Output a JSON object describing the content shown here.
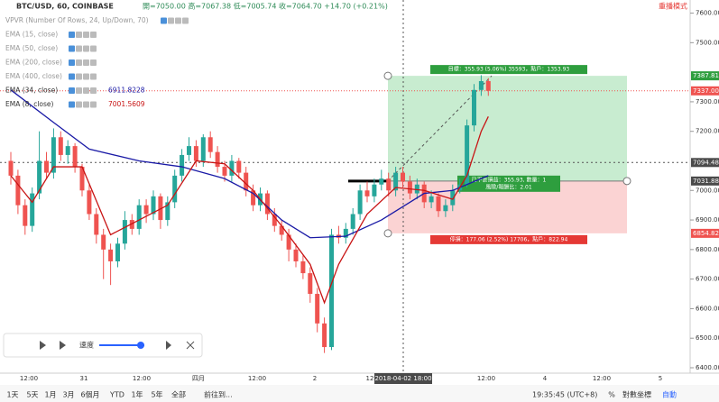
{
  "header": {
    "symbol": "BTC/USD, 60, COINBASE",
    "ohlc": "開=7050.00 高=7067.38 低=7005.74 收=7064.70 +14.70 (+0.21%)",
    "mode": "重播模式"
  },
  "indicators": [
    {
      "name": "VPVR (Number Of Rows, 24, Up/Down, 70)"
    },
    {
      "name": "EMA (15, close)"
    },
    {
      "name": "EMA (50, close)"
    },
    {
      "name": "EMA (200, close)"
    },
    {
      "name": "EMA (400, close)"
    },
    {
      "name": "EMA (34, close)",
      "value": "6911.8228",
      "color": "#1a1aa6"
    },
    {
      "name": "EMA (8, close)",
      "value": "7001.5609",
      "color": "#c81414"
    }
  ],
  "chart": {
    "ylim": [
      6400,
      7620
    ],
    "yticks": [
      {
        "value": 7600,
        "label": "7600.00"
      },
      {
        "value": 7500,
        "label": "7500.00"
      },
      {
        "value": 7300,
        "label": "7300.00"
      },
      {
        "value": 7200,
        "label": "7200.00"
      },
      {
        "value": 7000,
        "label": "7000.00"
      },
      {
        "value": 6900,
        "label": "6900.00"
      },
      {
        "value": 6800,
        "label": "6800.00"
      },
      {
        "value": 6700,
        "label": "6700.00"
      },
      {
        "value": 6600,
        "label": "6600.00"
      },
      {
        "value": 6500,
        "label": "6500.00"
      },
      {
        "value": 6400,
        "label": "6400.00"
      }
    ],
    "xlabels": [
      "12:00",
      "31",
      "12:00",
      "四月",
      "12:00",
      "2",
      "12",
      "12:00",
      "4",
      "12:00",
      "5"
    ],
    "up_color": "#26a69a",
    "down_color": "#ef5350",
    "candles": [
      [
        7100,
        7130,
        7020,
        7050
      ],
      [
        7050,
        7070,
        6920,
        6950
      ],
      [
        6950,
        6970,
        6850,
        6880
      ],
      [
        6880,
        7010,
        6860,
        6990
      ],
      [
        6990,
        7200,
        6970,
        7100
      ],
      [
        7100,
        7130,
        7040,
        7060
      ],
      [
        7060,
        7210,
        7040,
        7180
      ],
      [
        7180,
        7200,
        7100,
        7120
      ],
      [
        7120,
        7170,
        7090,
        7150
      ],
      [
        7150,
        7160,
        7060,
        7080
      ],
      [
        7080,
        7090,
        6980,
        7000
      ],
      [
        7000,
        7020,
        6900,
        6920
      ],
      [
        6920,
        6940,
        6820,
        6850
      ],
      [
        6850,
        6870,
        6700,
        6800
      ],
      [
        6800,
        6820,
        6680,
        6760
      ],
      [
        6760,
        6840,
        6740,
        6820
      ],
      [
        6820,
        6930,
        6800,
        6900
      ],
      [
        6900,
        6920,
        6850,
        6870
      ],
      [
        6870,
        6970,
        6850,
        6950
      ],
      [
        6950,
        6970,
        6890,
        6920
      ],
      [
        6920,
        7000,
        6900,
        6980
      ],
      [
        6980,
        6990,
        6870,
        6900
      ],
      [
        6900,
        6980,
        6880,
        6960
      ],
      [
        6960,
        7070,
        6940,
        7050
      ],
      [
        7050,
        7140,
        7030,
        7120
      ],
      [
        7120,
        7180,
        7100,
        7150
      ],
      [
        7150,
        7170,
        7080,
        7100
      ],
      [
        7100,
        7190,
        7080,
        7180
      ],
      [
        7180,
        7200,
        7110,
        7130
      ],
      [
        7130,
        7150,
        7060,
        7080
      ],
      [
        7080,
        7100,
        7030,
        7050
      ],
      [
        7050,
        7120,
        7030,
        7100
      ],
      [
        7100,
        7110,
        7040,
        7060
      ],
      [
        7060,
        7080,
        6980,
        7000
      ],
      [
        7000,
        7020,
        6930,
        6950
      ],
      [
        6950,
        7010,
        6930,
        6990
      ],
      [
        6990,
        7000,
        6900,
        6920
      ],
      [
        6920,
        6940,
        6860,
        6880
      ],
      [
        6880,
        6900,
        6830,
        6850
      ],
      [
        6850,
        6870,
        6760,
        6800
      ],
      [
        6800,
        6820,
        6740,
        6760
      ],
      [
        6760,
        6780,
        6700,
        6720
      ],
      [
        6720,
        6740,
        6620,
        6650
      ],
      [
        6650,
        6670,
        6520,
        6550
      ],
      [
        6550,
        6570,
        6450,
        6470
      ],
      [
        6470,
        6870,
        6460,
        6850
      ],
      [
        6850,
        6880,
        6820,
        6840
      ],
      [
        6840,
        6890,
        6820,
        6870
      ],
      [
        6870,
        6940,
        6850,
        6920
      ],
      [
        6920,
        7020,
        6900,
        7000
      ],
      [
        7000,
        7030,
        6960,
        6980
      ],
      [
        6980,
        7040,
        6960,
        7020
      ],
      [
        7020,
        7070,
        7000,
        7040
      ],
      [
        7040,
        7060,
        6980,
        7000
      ],
      [
        7000,
        7080,
        6980,
        7060
      ],
      [
        7060,
        7080,
        7010,
        7030
      ],
      [
        7030,
        7050,
        6970,
        6990
      ],
      [
        6990,
        7040,
        6970,
        7020
      ],
      [
        7020,
        7030,
        6940,
        6960
      ],
      [
        6960,
        7000,
        6940,
        6980
      ],
      [
        6980,
        6990,
        6910,
        6930
      ],
      [
        6930,
        6970,
        6910,
        6950
      ],
      [
        6950,
        7020,
        6930,
        7000
      ],
      [
        7000,
        7040,
        6990,
        7020
      ],
      [
        7020,
        7240,
        7010,
        7220
      ],
      [
        7220,
        7360,
        7200,
        7340
      ],
      [
        7340,
        7390,
        7320,
        7370
      ],
      [
        7370,
        7380,
        7320,
        7337
      ]
    ],
    "ema34": {
      "index": [
        0,
        6,
        11,
        18,
        24,
        30,
        34,
        38,
        42,
        47,
        52,
        58,
        62,
        67
      ],
      "values": [
        7340,
        7230,
        7140,
        7100,
        7080,
        7040,
        6990,
        6900,
        6840,
        6845,
        6900,
        6990,
        7000,
        7050
      ]
    },
    "ema8": {
      "index": [
        0,
        3,
        6,
        10,
        14,
        18,
        22,
        26,
        30,
        34,
        38,
        42,
        44,
        46,
        50,
        54,
        58,
        62,
        64,
        66,
        67
      ],
      "values": [
        7050,
        6960,
        7080,
        7080,
        6850,
        6900,
        6950,
        7100,
        7090,
        7000,
        6880,
        6750,
        6620,
        6750,
        6920,
        7010,
        7000,
        6970,
        7050,
        7200,
        7250
      ]
    },
    "position": {
      "target": 7387.81,
      "entry": 7031.88,
      "stop": 6854.82,
      "target_label": "目標：355.93 (5.06%) 35593，點戶：1353.93",
      "pnl_label": "已平倉損益：355.93, 數量：1",
      "rr_label": "風險/報酬比：2.01",
      "stop_label": "停損：177.06 (2.52%) 17706，點戶：822.94"
    },
    "current": {
      "value": 7337,
      "label": "7337.00"
    },
    "axis_marks": [
      {
        "value": 7387.81,
        "label": "7387.81",
        "color": "#2e9e3e"
      },
      {
        "value": 7337,
        "label": "7337.00",
        "color": "#ef5350"
      },
      {
        "value": 7094.48,
        "label": "7094.48",
        "color": "#4a4a4a"
      },
      {
        "value": 7031.88,
        "label": "7031.88",
        "color": "#4a4a4a"
      },
      {
        "value": 6854.82,
        "label": "6854.82",
        "color": "#ef5350"
      }
    ],
    "crosshair": {
      "price": 7094.48,
      "time_label": "2018-04-02 18:00"
    }
  },
  "replay": {
    "speed": "速度"
  },
  "toolbar": {
    "ranges": [
      "1天",
      "5天",
      "1月",
      "3月",
      "6個月",
      "YTD",
      "1年",
      "5年",
      "全部"
    ],
    "goto": "前往到...",
    "clock": "19:35:45 (UTC+8)",
    "percent": "%",
    "log": "對數坐標",
    "auto": "自動"
  }
}
